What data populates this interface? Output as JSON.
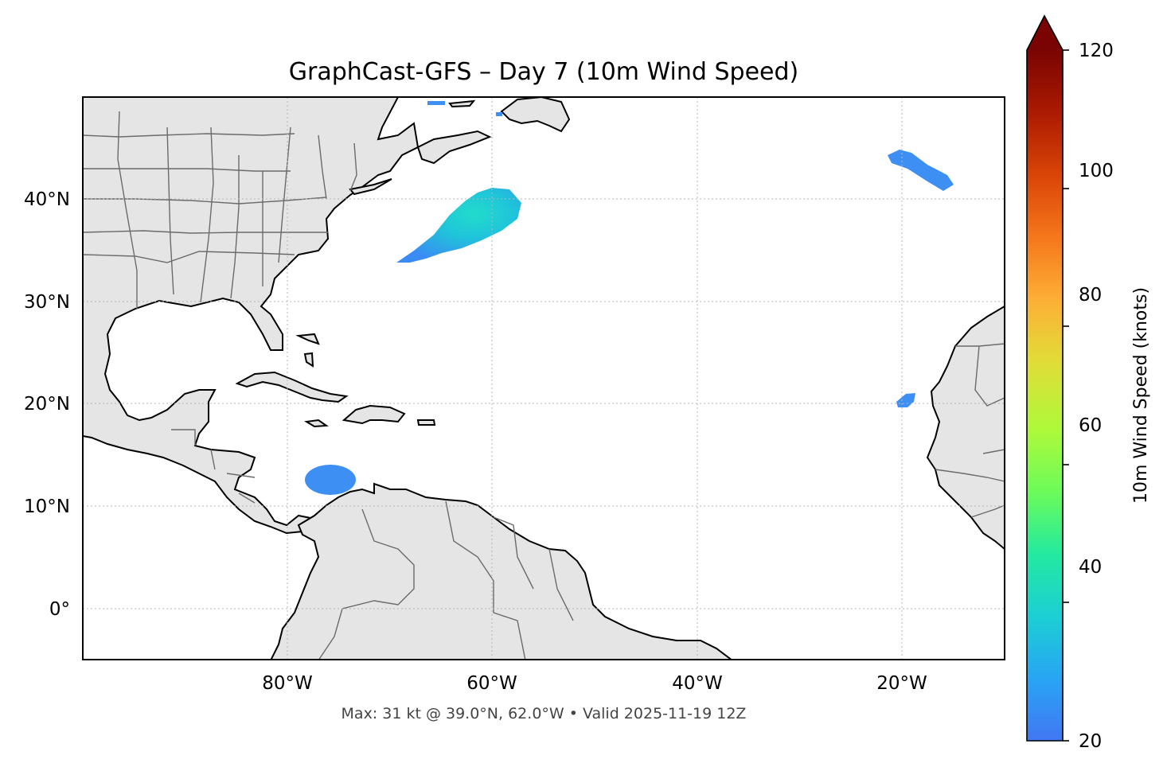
{
  "map": {
    "title": "GraphCast-GFS – Day 7 (10m Wind Speed)",
    "footer": "Max: 31 kt @ 39.0°N, 62.0°W • Valid 2025-11-19 12Z",
    "lon_ticks": [
      "80°W",
      "60°W",
      "40°W",
      "20°W"
    ],
    "lat_ticks": [
      "40°N",
      "30°N",
      "20°N",
      "10°N",
      "0°"
    ],
    "extent": {
      "lon": [
        -100,
        -10
      ],
      "lat": [
        -5,
        50
      ]
    },
    "gridlines": true,
    "colors": {
      "land": "#e5e5e5",
      "ocean": "#ffffff",
      "coast": "#000000",
      "borders": "#6b6b6b"
    }
  },
  "wind_features": [
    {
      "name": "gulf-stream-jet",
      "max_kt": 31,
      "center_lat": 39.0,
      "center_lon": -62.0
    },
    {
      "name": "caribbean-jet",
      "approx_kt": 24
    },
    {
      "name": "azores-area",
      "approx_kt": 22
    },
    {
      "name": "canary-area",
      "approx_kt": 22
    }
  ],
  "colorbar": {
    "label": "10m Wind Speed (knots)",
    "min": 20,
    "max": 120,
    "ticks": [
      "20",
      "40",
      "60",
      "80",
      "100",
      "120"
    ],
    "extend": "max",
    "colormap": [
      "#4277f4",
      "#28a5f4",
      "#1ccfd4",
      "#23e9a0",
      "#6cfb5a",
      "#aef93a",
      "#e2dc38",
      "#fdae35",
      "#f5761b",
      "#d94407",
      "#ab1a02",
      "#7a0403"
    ]
  }
}
